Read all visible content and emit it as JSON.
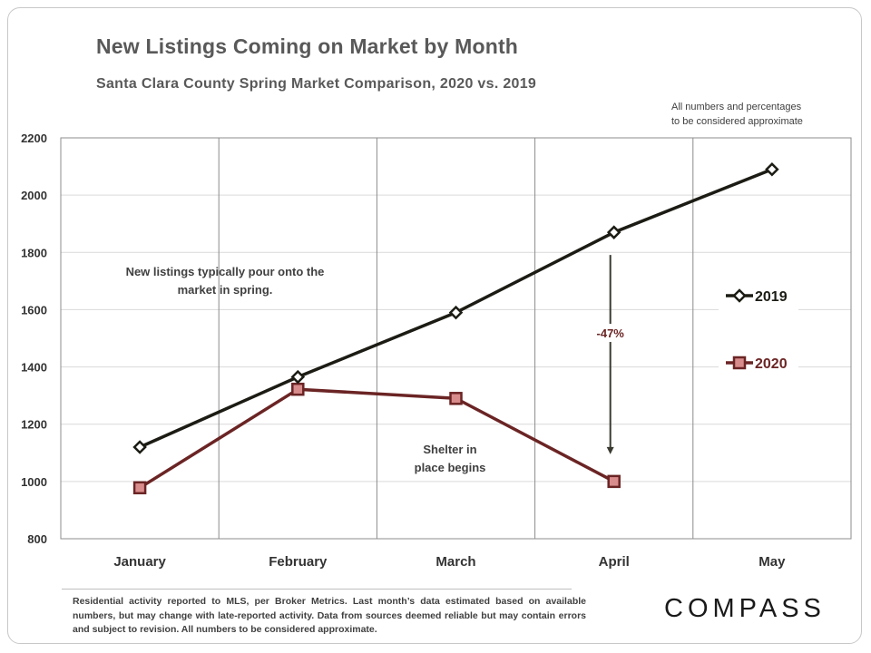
{
  "header": {
    "title": "New Listings Coming on Market by Month",
    "subtitle": "Santa Clara County Spring Market Comparison,  2020 vs. 2019",
    "disclaimer_line1": "All numbers and percentages",
    "disclaimer_line2": "to be considered approximate"
  },
  "footer": {
    "note": "Residential activity reported to MLS, per Broker Metrics. Last month’s data estimated based on available numbers, but may change with late-reported activity. Data from sources deemed reliable but may contain errors and subject to revision. All numbers to be considered approximate.",
    "brand": "COMPASS"
  },
  "annotations": {
    "spring_line1": "New listings typically pour onto the",
    "spring_line2": "market in spring.",
    "shelter_line1": "Shelter in",
    "shelter_line2": "place  begins",
    "change_label": "-47%"
  },
  "colors": {
    "series_2019": "#1c1c14",
    "series_2020": "#6b2424",
    "marker_2020_fill": "#d98c8c",
    "grid": "#d9d9d9",
    "arrow": "#3a3a30"
  },
  "chart_data": {
    "type": "line",
    "categories": [
      "January",
      "February",
      "March",
      "April",
      "May"
    ],
    "ylim": [
      800,
      2200
    ],
    "yticks": [
      800,
      1000,
      1200,
      1400,
      1600,
      1800,
      2000,
      2200
    ],
    "grid": true,
    "legend_position": "right",
    "series": [
      {
        "name": "2019",
        "values": [
          1120,
          1365,
          1590,
          1870,
          2090
        ],
        "marker": "diamond"
      },
      {
        "name": "2020",
        "values": [
          978,
          1322,
          1290,
          1000,
          null
        ],
        "marker": "square"
      }
    ],
    "annotation_arrow": {
      "category": "April",
      "from": 1870,
      "to": 1000,
      "label": "-47%"
    }
  }
}
